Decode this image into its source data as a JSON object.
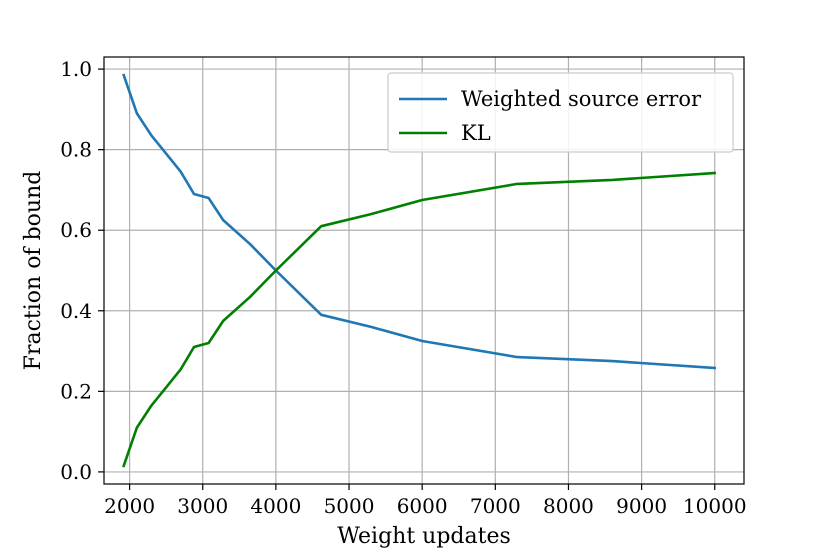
{
  "chart_data": {
    "type": "line",
    "title": "",
    "xlabel": "Weight updates",
    "ylabel": "Fraction of bound",
    "xlim": [
      1650,
      10400
    ],
    "ylim": [
      -0.03,
      1.03
    ],
    "xticks": [
      2000,
      3000,
      4000,
      5000,
      6000,
      7000,
      8000,
      9000,
      10000
    ],
    "xtick_labels": [
      "2000",
      "3000",
      "4000",
      "5000",
      "6000",
      "7000",
      "8000",
      "9000",
      "10000"
    ],
    "yticks": [
      0.0,
      0.2,
      0.4,
      0.6,
      0.8,
      1.0
    ],
    "ytick_labels": [
      "0.0",
      "0.2",
      "0.4",
      "0.6",
      "0.8",
      "1.0"
    ],
    "grid": true,
    "legend_position": "top-right",
    "series": [
      {
        "name": "Weighted source error",
        "color": "#1f77b4",
        "x": [
          1920,
          2100,
          2300,
          2500,
          2700,
          2880,
          3080,
          3280,
          3650,
          4000,
          4620,
          5300,
          6000,
          7300,
          8600,
          10000
        ],
        "y": [
          0.985,
          0.89,
          0.835,
          0.79,
          0.745,
          0.69,
          0.68,
          0.625,
          0.565,
          0.5,
          0.39,
          0.36,
          0.325,
          0.285,
          0.275,
          0.258
        ]
      },
      {
        "name": "KL",
        "color": "#008000",
        "x": [
          1920,
          2100,
          2300,
          2500,
          2700,
          2880,
          3080,
          3280,
          3650,
          4000,
          4620,
          5300,
          6000,
          7300,
          8600,
          10000
        ],
        "y": [
          0.015,
          0.11,
          0.165,
          0.21,
          0.255,
          0.31,
          0.32,
          0.375,
          0.435,
          0.5,
          0.61,
          0.64,
          0.675,
          0.715,
          0.725,
          0.742
        ]
      }
    ]
  }
}
